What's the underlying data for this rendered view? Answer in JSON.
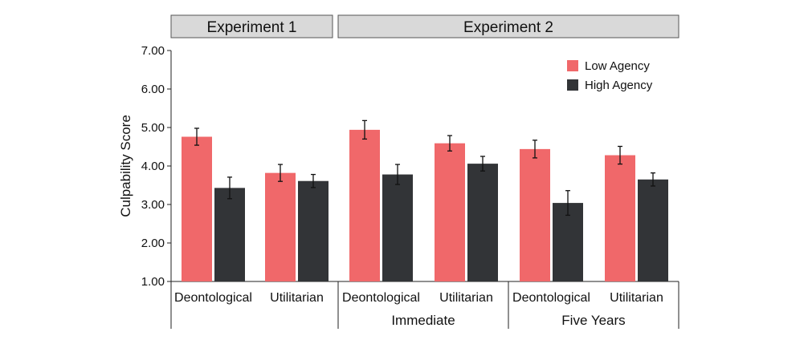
{
  "chart_data": {
    "type": "bar",
    "ylabel": "Culpability Score",
    "ylim": [
      1,
      7
    ],
    "yticks": [
      "1.00",
      "2.00",
      "3.00",
      "4.00",
      "5.00",
      "6.00",
      "7.00"
    ],
    "legend_position": "top-right",
    "panels": [
      {
        "label": "Experiment 1",
        "categories": [
          0,
          1
        ]
      },
      {
        "label": "Experiment 2",
        "categories": [
          2,
          3,
          4,
          5
        ]
      }
    ],
    "groups": [
      {
        "label": "",
        "categories": [
          0,
          1
        ]
      },
      {
        "label": "Immediate",
        "categories": [
          2,
          3
        ]
      },
      {
        "label": "Five Years",
        "categories": [
          4,
          5
        ]
      }
    ],
    "categories": [
      "Deontological",
      "Utilitarian",
      "Deontological",
      "Utilitarian",
      "Deontological",
      "Utilitarian"
    ],
    "series": [
      {
        "name": "Low Agency",
        "color": "#f0686a",
        "values": [
          4.76,
          3.82,
          4.94,
          4.59,
          4.44,
          4.28
        ],
        "error": [
          0.22,
          0.22,
          0.24,
          0.2,
          0.23,
          0.23
        ]
      },
      {
        "name": "High Agency",
        "color": "#323437",
        "values": [
          3.43,
          3.61,
          3.78,
          4.06,
          3.04,
          3.65
        ],
        "error": [
          0.28,
          0.17,
          0.26,
          0.19,
          0.32,
          0.17
        ]
      }
    ]
  }
}
